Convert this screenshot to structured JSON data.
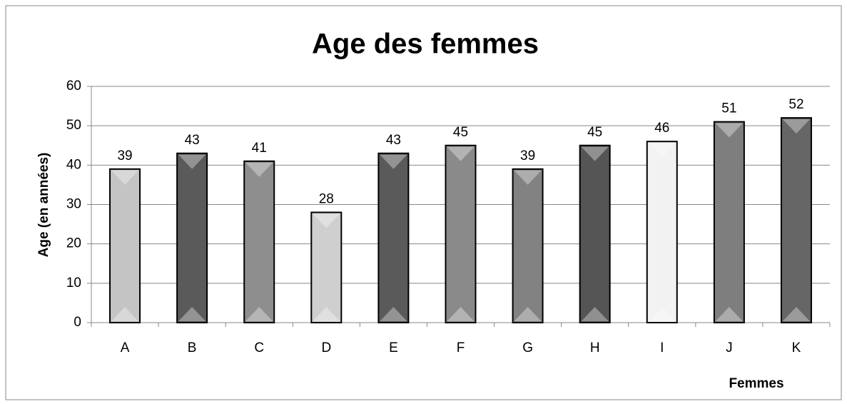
{
  "chart_data": {
    "type": "bar",
    "title": "Age des femmes",
    "xlabel": "Femmes",
    "ylabel": "Age (en années)",
    "categories": [
      "A",
      "B",
      "C",
      "D",
      "E",
      "F",
      "G",
      "H",
      "I",
      "J",
      "K"
    ],
    "values": [
      39,
      43,
      41,
      28,
      43,
      45,
      39,
      45,
      46,
      51,
      52
    ],
    "colors": [
      "#c4c4c4",
      "#5a5a5a",
      "#8e8e8e",
      "#cfcfcf",
      "#5a5a5a",
      "#8a8a8a",
      "#828282",
      "#555555",
      "#f2f2f2",
      "#7e7e7e",
      "#666666"
    ],
    "ylim": [
      0,
      60
    ],
    "yticks": [
      0,
      10,
      20,
      30,
      40,
      50,
      60
    ],
    "grid": true
  }
}
